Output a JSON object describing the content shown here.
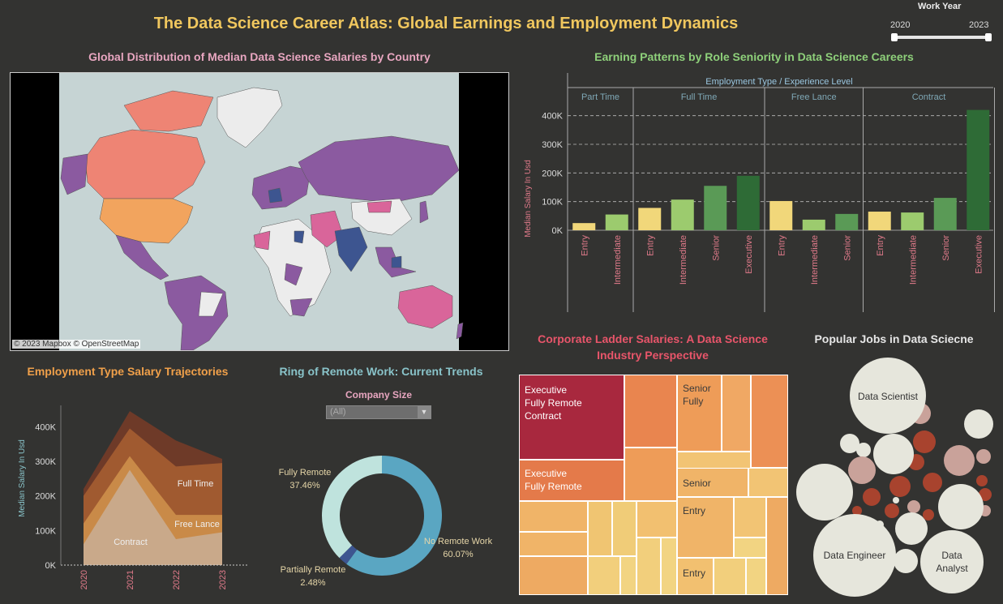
{
  "dashboard": {
    "title": "The Data Science Career Atlas: Global Earnings and Employment Dynamics"
  },
  "work_year_filter": {
    "label": "Work Year",
    "min": "2020",
    "max": "2023"
  },
  "map_panel": {
    "title": "Global Distribution of Median Data Science Salaries by Country",
    "attribution": "© 2023 Mapbox © OpenStreetMap",
    "colors": {
      "ocean": "#c6d4d4",
      "nodata": "#ececec",
      "purple": "#8b5aa0",
      "salmon": "#ee8474",
      "peach": "#f2a45e",
      "pink": "#d9659a",
      "navy": "#3d5590"
    }
  },
  "seniority_panel": {
    "title": "Earning Patterns by Role Seniority in Data Science Careers",
    "header": "Employment Type  /  Experience Level",
    "ylabel": "Median Salary In Usd"
  },
  "trajectory_panel": {
    "title": "Employment Type Salary Trajectories",
    "ylabel": "Median Salary In Usd",
    "labels": {
      "full_time": "Full Time",
      "free_lance": "Free Lance",
      "contract": "Contract"
    }
  },
  "remote_panel": {
    "title": "Ring of Remote Work: Current Trends",
    "filter_label": "Company Size",
    "filter_value": "(All)",
    "dropdown_arrow": "▼",
    "slices": [
      {
        "label": "Fully Remote",
        "pct": "37.46%",
        "value": 37.46,
        "color": "#bfe3dd"
      },
      {
        "label": "No Remote Work",
        "pct": "60.07%",
        "value": 60.07,
        "color": "#5aa6c2"
      },
      {
        "label": "Partially Remote",
        "pct": "2.48%",
        "value": 2.48,
        "color": "#3d5590"
      }
    ]
  },
  "treemap_panel": {
    "title_line1": "Corporate Ladder Salaries: A Data Science",
    "title_line2": "Industry Perspective",
    "labels": {
      "exec_contract": [
        "Executive",
        "Fully Remote",
        "Contract"
      ],
      "exec_remote": [
        "Executive",
        "Fully Remote"
      ],
      "senior_fully": [
        "Senior",
        "Fully"
      ],
      "senior": "Senior",
      "entry1": "Entry",
      "entry2": "Entry"
    }
  },
  "bubble_panel": {
    "title": "Popular Jobs in Data Sciecne",
    "bubbles": {
      "data_scientist": "Data Scientist",
      "data_engineer": "Data Engineer",
      "data_analyst_1": "Data",
      "data_analyst_2": "Analyst"
    }
  },
  "chart_data": [
    {
      "type": "bar",
      "title": "Earning Patterns by Role Seniority in Data Science Careers",
      "ylabel": "Median Salary In Usd",
      "ylim": [
        0,
        450000
      ],
      "yticks": [
        "0K",
        "100K",
        "200K",
        "300K",
        "400K"
      ],
      "ytick_values": [
        0,
        100000,
        200000,
        300000,
        400000
      ],
      "grid": true,
      "groups": [
        {
          "name": "Part Time",
          "bars": [
            {
              "level": "Entry",
              "value": 25000
            },
            {
              "level": "Intermediate",
              "value": 55000
            }
          ]
        },
        {
          "name": "Full Time",
          "bars": [
            {
              "level": "Entry",
              "value": 78000
            },
            {
              "level": "Intermediate",
              "value": 107000
            },
            {
              "level": "Senior",
              "value": 155000
            },
            {
              "level": "Executive",
              "value": 190000
            }
          ]
        },
        {
          "name": "Free Lance",
          "bars": [
            {
              "level": "Entry",
              "value": 102000
            },
            {
              "level": "Intermediate",
              "value": 37000
            },
            {
              "level": "Senior",
              "value": 57000
            }
          ]
        },
        {
          "name": "Contract",
          "bars": [
            {
              "level": "Entry",
              "value": 65000
            },
            {
              "level": "Intermediate",
              "value": 62000
            },
            {
              "level": "Senior",
              "value": 113000
            },
            {
              "level": "Executive",
              "value": 420000
            }
          ]
        }
      ],
      "level_colors": {
        "Entry": "#f1d77a",
        "Intermediate": "#9ccb6e",
        "Senior": "#5a9a56",
        "Executive": "#2e6b36"
      }
    },
    {
      "type": "area",
      "title": "Employment Type Salary Trajectories",
      "ylabel": "Median Salary In Usd",
      "x": [
        "2020",
        "2021",
        "2022",
        "2023"
      ],
      "ylim": [
        0,
        450000
      ],
      "yticks": [
        "0K",
        "100K",
        "200K",
        "300K",
        "400K"
      ],
      "ytick_values": [
        0,
        100000,
        200000,
        300000,
        400000
      ],
      "stacked": true,
      "series": [
        {
          "name": "Contract",
          "values": [
            60000,
            275000,
            75000,
            95000
          ],
          "color": "#c9a98a"
        },
        {
          "name": "Free Lance",
          "values": [
            60000,
            40000,
            70000,
            50000
          ],
          "color": "#c98a48"
        },
        {
          "name": "Full Time",
          "values": [
            80000,
            80000,
            140000,
            150000
          ],
          "color": "#a05a30"
        },
        {
          "name": "",
          "values": [
            20000,
            50000,
            75000,
            12000
          ],
          "color": "#6e3a28"
        }
      ]
    },
    {
      "type": "pie",
      "title": "Ring of Remote Work: Current Trends",
      "categories": [
        "Fully Remote",
        "No Remote Work",
        "Partially Remote"
      ],
      "values": [
        37.46,
        60.07,
        2.48
      ]
    }
  ]
}
